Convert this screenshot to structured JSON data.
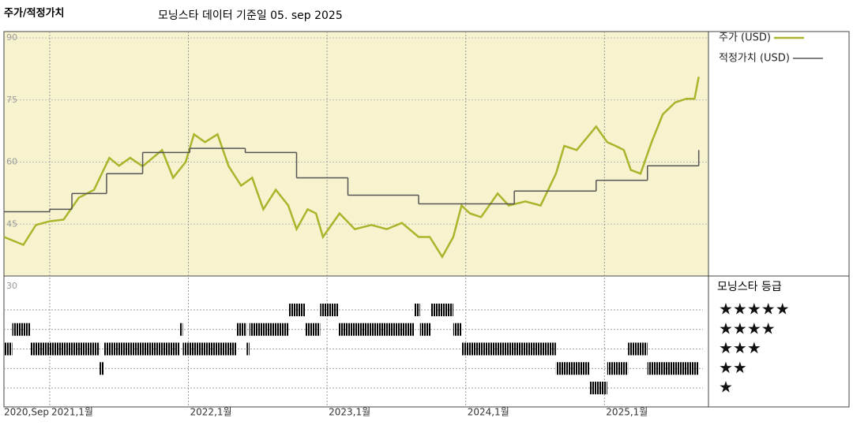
{
  "chart_data": {
    "type": "line",
    "title": "주가/적정가치",
    "subtitle": "모닝스타 데이터 기준일 05. sep 2025",
    "xlim": [
      2020.67,
      2025.75
    ],
    "xticks": [
      {
        "value": 2020.67,
        "label": "2020,Sep"
      },
      {
        "value": 2021,
        "label": "2021,1월"
      },
      {
        "value": 2022,
        "label": "2022,1월"
      },
      {
        "value": 2023,
        "label": "2023,1월"
      },
      {
        "value": 2024,
        "label": "2024,1월"
      },
      {
        "value": 2025,
        "label": "2025,1월"
      }
    ],
    "ylim": [
      30,
      91.5
    ],
    "yticks": [
      30,
      45,
      60,
      75,
      90
    ],
    "grid": true,
    "series": [
      {
        "name": "주가 (USD)",
        "color": "#a9b52b",
        "x": [
          2020.67,
          2020.81,
          2020.9,
          2021.0,
          2021.1,
          2021.21,
          2021.32,
          2021.43,
          2021.5,
          2021.58,
          2021.67,
          2021.81,
          2021.89,
          2021.98,
          2022.04,
          2022.12,
          2022.21,
          2022.29,
          2022.38,
          2022.46,
          2022.54,
          2022.63,
          2022.72,
          2022.78,
          2022.86,
          2022.92,
          2022.97,
          2023.09,
          2023.2,
          2023.32,
          2023.43,
          2023.54,
          2023.66,
          2023.74,
          2023.83,
          2023.91,
          2023.97,
          2024.03,
          2024.11,
          2024.23,
          2024.31,
          2024.43,
          2024.54,
          2024.65,
          2024.71,
          2024.8,
          2024.94,
          2025.02,
          2025.08,
          2025.14,
          2025.19,
          2025.26,
          2025.34,
          2025.42,
          2025.51,
          2025.59,
          2025.65,
          2025.68
        ],
        "values": [
          41.9,
          40.0,
          44.8,
          45.7,
          46.1,
          51.4,
          53.3,
          61.0,
          59.1,
          61.0,
          59.0,
          62.9,
          56.2,
          60.0,
          66.7,
          64.8,
          66.7,
          59.0,
          54.3,
          56.2,
          48.6,
          53.3,
          49.5,
          43.8,
          48.6,
          47.6,
          41.9,
          47.6,
          43.8,
          44.8,
          43.8,
          45.3,
          41.9,
          41.9,
          37.1,
          41.9,
          49.5,
          47.6,
          46.7,
          52.4,
          49.5,
          50.5,
          49.5,
          57.2,
          63.9,
          62.9,
          68.6,
          64.8,
          63.9,
          62.9,
          58.1,
          57.2,
          64.8,
          71.5,
          74.4,
          75.3,
          75.3,
          80.6
        ]
      },
      {
        "name": "적정가치 (USD)",
        "color": "#555555",
        "step": true,
        "x": [
          2020.67,
          2021.0,
          2021.16,
          2021.41,
          2021.67,
          2022.01,
          2022.41,
          2022.78,
          2023.15,
          2023.66,
          2024.35,
          2024.94,
          2025.31,
          2025.68
        ],
        "values": [
          48.0,
          48.6,
          52.4,
          57.2,
          62.3,
          63.3,
          62.3,
          56.2,
          52.0,
          49.9,
          53.0,
          55.6,
          59.1,
          62.9
        ]
      }
    ],
    "ratings": {
      "title": "모닝스타 등급",
      "color": "#262626",
      "top_color": "#3c8c6c",
      "levels": [
        5,
        4,
        3,
        2,
        1
      ],
      "level_labels": [
        "★★★★★",
        "★★★★",
        "★★★",
        "★★",
        "★"
      ],
      "bins": [
        2020.67,
        2020.73,
        2020.86,
        2021.36,
        2021.39,
        2021.94,
        2021.96,
        2022.35,
        2022.42,
        2022.44,
        2022.72,
        2022.84,
        2022.95,
        2023.08,
        2023.63,
        2023.67,
        2023.75,
        2023.91,
        2023.97,
        2024.65,
        2024.89,
        2025.02,
        2025.17,
        2025.31,
        2025.68
      ],
      "values": [
        3,
        4,
        3,
        2,
        3,
        4,
        3,
        4,
        3,
        4,
        5,
        4,
        5,
        4,
        5,
        4,
        5,
        4,
        3,
        2,
        1,
        2,
        3,
        2
      ]
    }
  }
}
